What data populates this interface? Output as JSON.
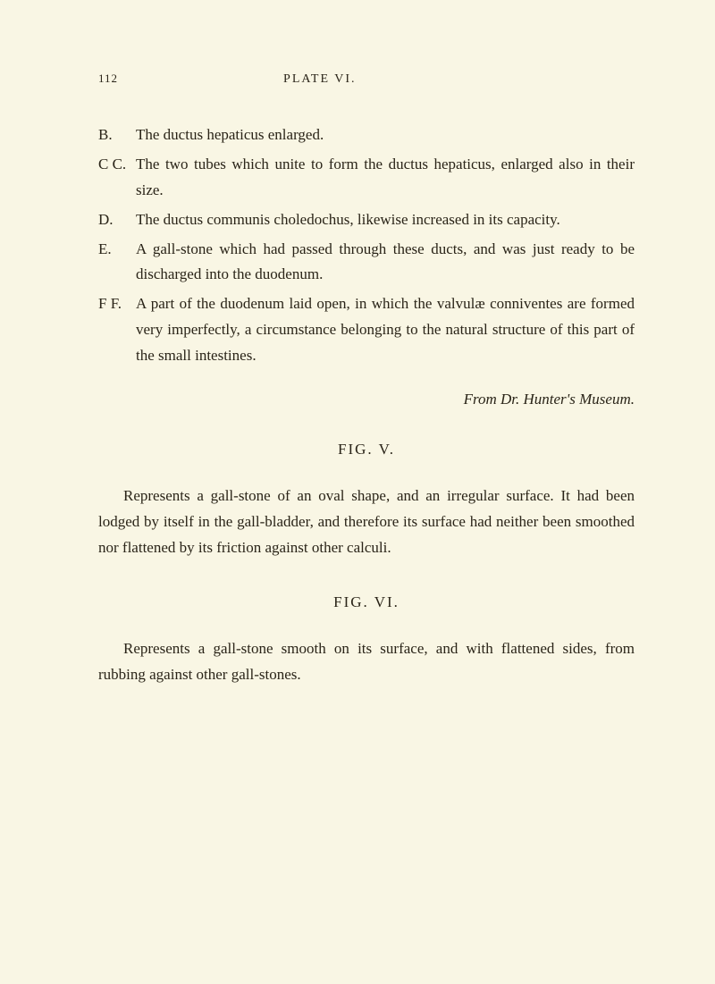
{
  "page": {
    "number": "112",
    "plate_title": "PLATE VI."
  },
  "definitions": {
    "b": {
      "label": "B.",
      "text": "The ductus hepaticus enlarged."
    },
    "cc": {
      "label": "C C.",
      "text": "The two tubes which unite to form the ductus hepaticus, enlarged also in their size."
    },
    "d": {
      "label": "D.",
      "text": "The ductus communis choledochus, likewise increased in its capacity."
    },
    "e": {
      "label": "E.",
      "text": "A gall-stone which had passed through these ducts, and was just ready to be discharged into the duodenum."
    },
    "ff": {
      "label": "F F.",
      "text": "A part of the duodenum laid open, in which the val­vulæ conniventes are formed very imperfectly, a cir­cumstance belonging to the natural structure of this part of the small intestines."
    }
  },
  "source": "From Dr. Hunter's Museum.",
  "figures": {
    "v": {
      "heading": "FIG. V.",
      "text": "Represents a gall-stone of an oval shape, and an irregular surface. It had been lodged by itself in the gall-bladder, and therefore its surface had neither been smoothed nor flattened by its friction against other calculi."
    },
    "vi": {
      "heading": "FIG. VI.",
      "text": "Represents a gall-stone smooth on its surface, and with flattened sides, from rubbing against other gall-stones."
    }
  }
}
